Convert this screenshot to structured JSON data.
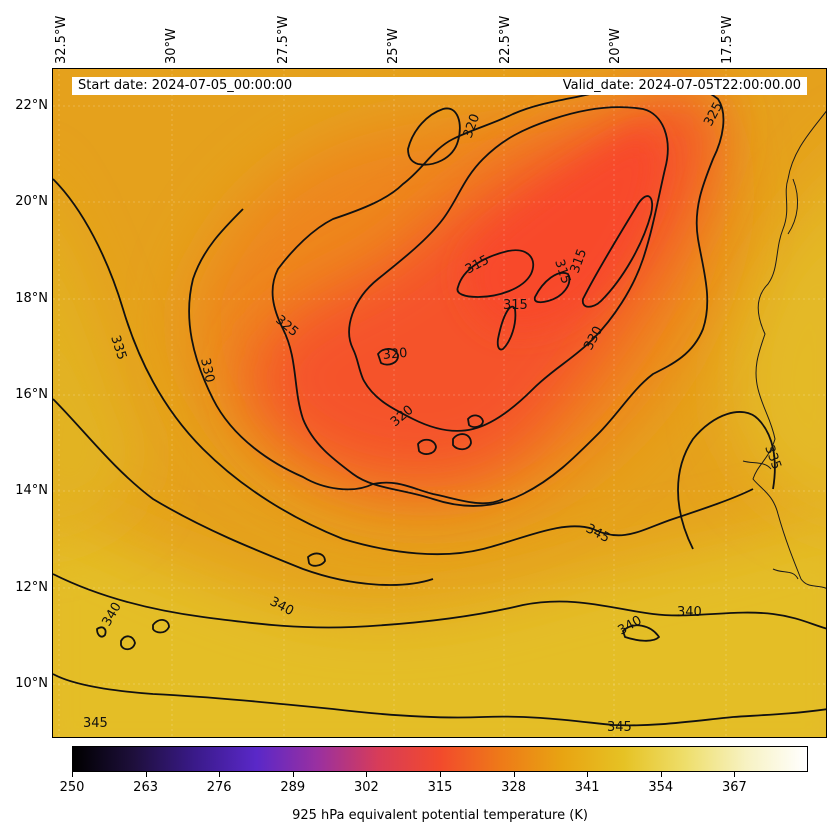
{
  "header": {
    "start_date": "Start date: 2024-07-05_00:00:00",
    "valid_date": "Valid_date: 2024-07-05T22:00:00.00"
  },
  "lon_labels": [
    "32.5°W",
    "30°W",
    "27.5°W",
    "25°W",
    "22.5°W",
    "20°W",
    "17.5°W"
  ],
  "lat_labels": [
    "22°N",
    "20°N",
    "18°N",
    "16°N",
    "14°N",
    "12°N",
    "10°N"
  ],
  "contour_labels": [
    "320",
    "325",
    "315",
    "315",
    "315",
    "315",
    "335",
    "330",
    "325",
    "320",
    "320",
    "330",
    "335",
    "345",
    "340",
    "340",
    "340",
    "345",
    "345",
    "340"
  ],
  "colorbar": {
    "ticks": [
      "250",
      "263",
      "276",
      "289",
      "302",
      "315",
      "328",
      "341",
      "354",
      "367"
    ],
    "label": "925 hPa equivalent potential temperature (K)",
    "colors": [
      "#000000",
      "#1e0f3c",
      "#3a1a8a",
      "#5a28c8",
      "#9a30a0",
      "#d83c58",
      "#f24a2c",
      "#ee7a18",
      "#e8a412",
      "#e6c224",
      "#eede6a",
      "#f7f2c2",
      "#ffffff"
    ]
  },
  "palette": {
    "base": "#e49a18",
    "core": "#f5502c",
    "warm": "#e3bb26",
    "contour": "#111111",
    "coast": "#1a1a1a"
  }
}
